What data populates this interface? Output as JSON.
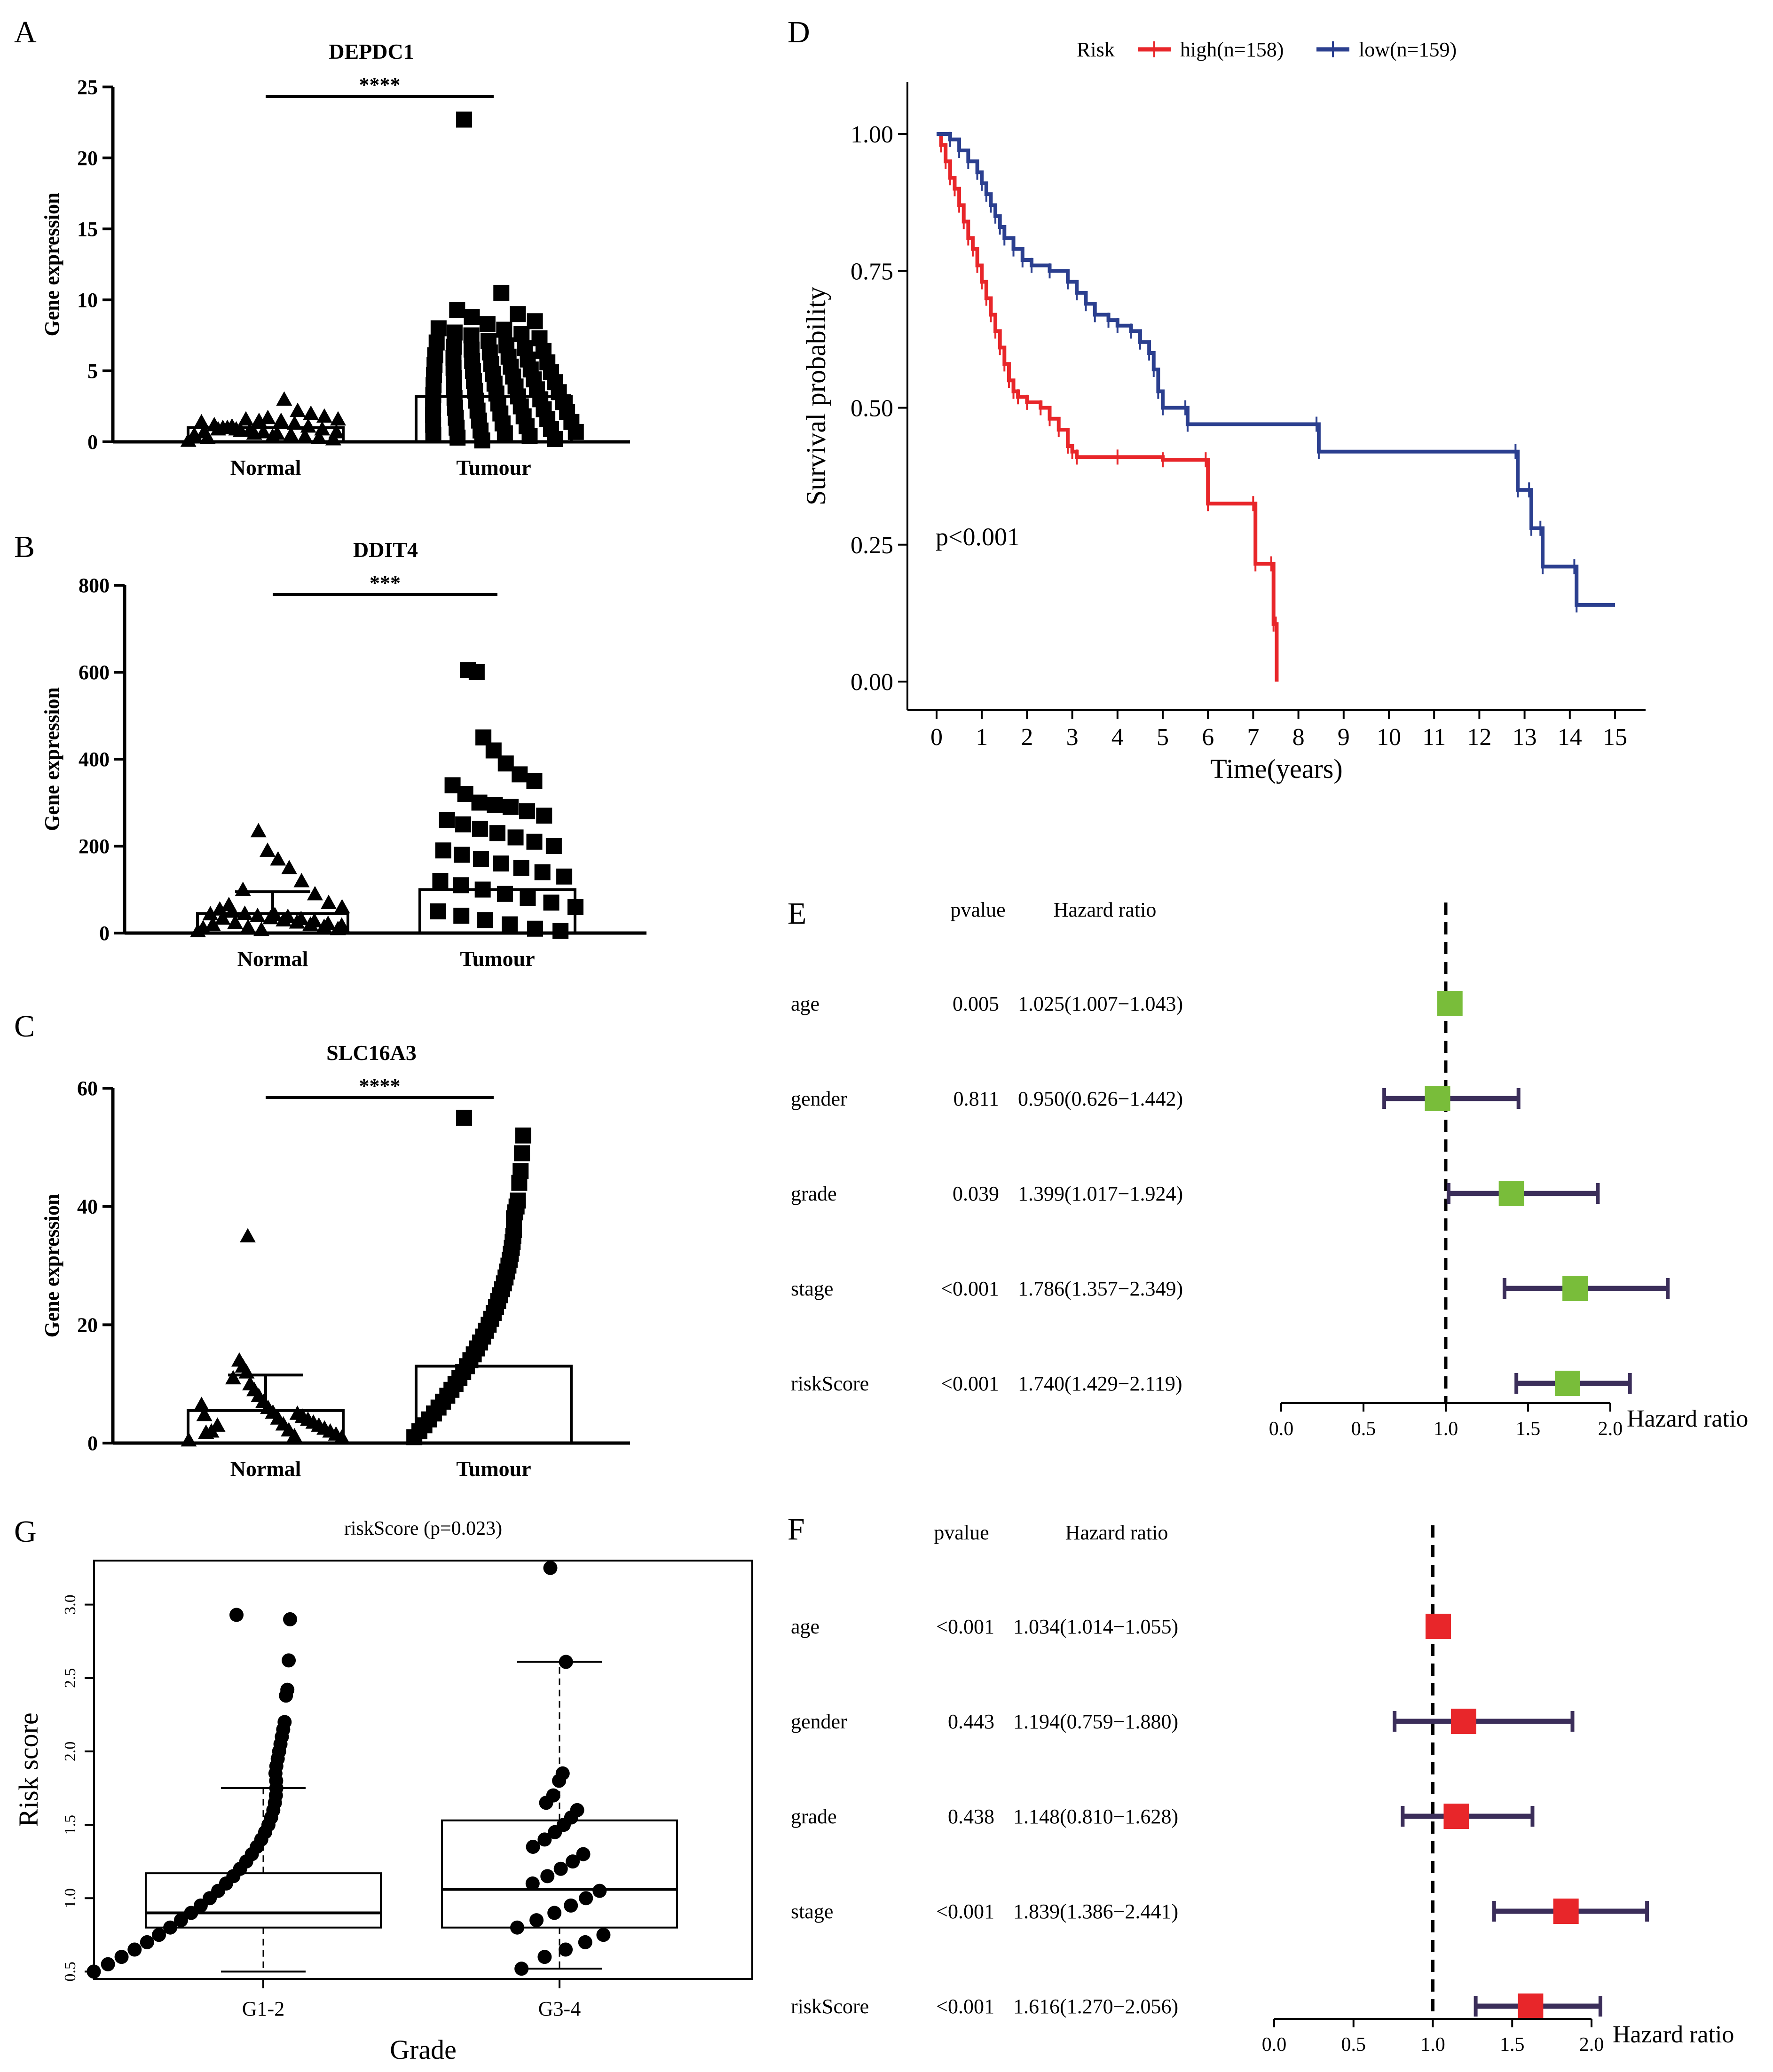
{
  "colors": {
    "high": "#e8262a",
    "low": "#2b3f8f",
    "forest_ci": "#3b2e5a",
    "forest_green": "#79bd3a",
    "forest_red": "#e8262a",
    "black": "#000000"
  },
  "chart_data": [
    {
      "panel": "A",
      "type": "scatter",
      "title": "DEPDC1",
      "ylabel": "Gene expression",
      "categories": [
        "Normal",
        "Tumour"
      ],
      "ylim": [
        0,
        25
      ],
      "yticks": [
        "0",
        "5",
        "10",
        "15",
        "20",
        "25"
      ],
      "significance": "****",
      "means": [
        1.0,
        3.2
      ],
      "sd_upper": [
        1.0,
        3.2
      ],
      "series": [
        {
          "name": "Normal",
          "marker": "triangle",
          "values": [
            0.1,
            0.2,
            0.3,
            0.4,
            0.5,
            0.6,
            0.7,
            0.8,
            0.9,
            1.0,
            0.3,
            0.5,
            0.7,
            0.9,
            1.1,
            1.3,
            1.5,
            1.7,
            0.6,
            0.8,
            1.0,
            1.2,
            1.4,
            1.6,
            1.8,
            2.0,
            2.2,
            3.0,
            0.4,
            1.5,
            1.6,
            1.1,
            0.9,
            0.7
          ]
        },
        {
          "name": "Tumour",
          "marker": "square",
          "values": [
            22.7,
            10.5,
            9.3,
            9.0,
            8.8,
            8.5,
            8.3,
            8.0,
            7.9,
            7.7,
            7.6,
            7.5,
            7.3,
            7.1,
            7.0,
            6.8,
            6.7,
            6.6,
            6.5,
            6.4,
            6.3,
            6.1,
            6.0,
            5.9,
            5.8,
            5.7,
            5.6,
            5.5,
            5.4,
            5.3,
            5.2,
            5.1,
            5.0,
            4.9,
            4.8,
            4.7,
            4.6,
            4.5,
            4.4,
            4.3,
            4.2,
            4.1,
            4.0,
            3.9,
            3.8,
            3.7,
            3.6,
            3.5,
            3.4,
            3.3,
            3.2,
            3.1,
            3.0,
            2.9,
            2.8,
            2.7,
            2.6,
            2.5,
            2.4,
            2.3,
            2.2,
            2.1,
            2.0,
            1.9,
            1.8,
            1.7,
            1.6,
            1.5,
            1.4,
            1.3,
            1.2,
            1.1,
            1.0,
            0.9,
            0.8,
            0.7,
            0.6,
            0.5,
            0.4,
            0.3,
            0.2,
            0.1
          ]
        }
      ]
    },
    {
      "panel": "B",
      "type": "scatter",
      "title": "DDIT4",
      "ylabel": "Gene expression",
      "categories": [
        "Normal",
        "Tumour"
      ],
      "ylim": [
        0,
        800
      ],
      "yticks": [
        "0",
        "200",
        "400",
        "600",
        "800"
      ],
      "significance": "***",
      "means": [
        45,
        100
      ],
      "sd_upper": [
        95,
        100
      ],
      "series": [
        {
          "name": "Normal",
          "marker": "triangle",
          "values": [
            5,
            10,
            15,
            20,
            25,
            30,
            35,
            40,
            45,
            50,
            55,
            12,
            18,
            22,
            28,
            33,
            38,
            42,
            8,
            14,
            24,
            34,
            44,
            60,
            70,
            90,
            120,
            150,
            170,
            190,
            235,
            100,
            65,
            20
          ]
        },
        {
          "name": "Tumour",
          "marker": "square",
          "values": [
            605,
            600,
            450,
            420,
            390,
            365,
            350,
            340,
            320,
            300,
            295,
            290,
            280,
            270,
            260,
            250,
            240,
            230,
            220,
            210,
            200,
            190,
            180,
            170,
            160,
            150,
            140,
            130,
            120,
            110,
            100,
            90,
            80,
            70,
            60,
            50,
            40,
            30,
            20,
            10,
            5
          ]
        }
      ]
    },
    {
      "panel": "C",
      "type": "scatter",
      "title": "SLC16A3",
      "ylabel": "Gene expression",
      "categories": [
        "Normal",
        "Tumour"
      ],
      "ylim": [
        0,
        60
      ],
      "yticks": [
        "0",
        "20",
        "40",
        "60"
      ],
      "significance": "****",
      "means": [
        5.5,
        13
      ],
      "sd_upper": [
        11.5,
        13
      ],
      "series": [
        {
          "name": "Normal",
          "marker": "triangle",
          "values": [
            0.5,
            1,
            1.5,
            2,
            2.5,
            3,
            3.5,
            4,
            4.5,
            5,
            1.2,
            2.2,
            3.2,
            4.2,
            5.2,
            6,
            7,
            8,
            9,
            10,
            12,
            13,
            14,
            11,
            35,
            3,
            2,
            1.8,
            4.8,
            6.5
          ]
        },
        {
          "name": "Tumour",
          "marker": "square",
          "values": [
            55,
            52,
            49,
            46,
            44,
            41,
            40,
            39,
            38,
            36,
            35,
            34,
            33,
            32,
            31,
            30,
            29,
            28,
            27,
            26,
            25,
            24,
            23,
            22,
            21,
            20,
            19,
            18,
            17,
            16,
            15,
            14,
            13,
            12,
            11,
            10,
            9,
            8,
            7,
            6,
            5,
            4,
            3,
            2,
            1
          ]
        }
      ]
    },
    {
      "panel": "D",
      "type": "line",
      "title": "",
      "xlabel": "Time(years)",
      "ylabel": "Survival probability",
      "xlim": [
        0,
        15
      ],
      "ylim": [
        0,
        1
      ],
      "xticks": [
        "0",
        "1",
        "2",
        "3",
        "4",
        "5",
        "6",
        "7",
        "8",
        "9",
        "10",
        "11",
        "12",
        "13",
        "14",
        "15"
      ],
      "yticks": [
        "0.00",
        "0.25",
        "0.50",
        "0.75",
        "1.00"
      ],
      "legend_title": "Risk",
      "legend_position": "top",
      "annotation": "p<0.001",
      "series": [
        {
          "name": "high(n=158)",
          "points": [
            [
              0,
              1.0
            ],
            [
              0.1,
              0.98
            ],
            [
              0.2,
              0.95
            ],
            [
              0.3,
              0.92
            ],
            [
              0.4,
              0.9
            ],
            [
              0.5,
              0.87
            ],
            [
              0.6,
              0.84
            ],
            [
              0.7,
              0.81
            ],
            [
              0.8,
              0.79
            ],
            [
              0.9,
              0.76
            ],
            [
              1.0,
              0.73
            ],
            [
              1.1,
              0.7
            ],
            [
              1.2,
              0.67
            ],
            [
              1.3,
              0.64
            ],
            [
              1.4,
              0.61
            ],
            [
              1.5,
              0.58
            ],
            [
              1.6,
              0.55
            ],
            [
              1.7,
              0.53
            ],
            [
              1.8,
              0.52
            ],
            [
              2.0,
              0.51
            ],
            [
              2.3,
              0.5
            ],
            [
              2.5,
              0.48
            ],
            [
              2.7,
              0.46
            ],
            [
              2.9,
              0.43
            ],
            [
              3.0,
              0.42
            ],
            [
              3.1,
              0.41
            ],
            [
              4.0,
              0.41
            ],
            [
              5.0,
              0.405
            ],
            [
              5.95,
              0.405
            ],
            [
              6.0,
              0.325
            ],
            [
              7.0,
              0.325
            ],
            [
              7.05,
              0.215
            ],
            [
              7.4,
              0.215
            ],
            [
              7.45,
              0.105
            ],
            [
              7.5,
              0.105
            ],
            [
              7.52,
              0.0
            ]
          ]
        },
        {
          "name": "low(n=159)",
          "points": [
            [
              0,
              1.0
            ],
            [
              0.3,
              0.99
            ],
            [
              0.5,
              0.97
            ],
            [
              0.7,
              0.95
            ],
            [
              0.9,
              0.93
            ],
            [
              1.0,
              0.91
            ],
            [
              1.1,
              0.89
            ],
            [
              1.2,
              0.87
            ],
            [
              1.3,
              0.85
            ],
            [
              1.4,
              0.83
            ],
            [
              1.5,
              0.81
            ],
            [
              1.7,
              0.79
            ],
            [
              1.9,
              0.77
            ],
            [
              2.1,
              0.76
            ],
            [
              2.5,
              0.75
            ],
            [
              2.9,
              0.73
            ],
            [
              3.1,
              0.71
            ],
            [
              3.3,
              0.69
            ],
            [
              3.5,
              0.67
            ],
            [
              3.8,
              0.66
            ],
            [
              4.0,
              0.65
            ],
            [
              4.3,
              0.64
            ],
            [
              4.5,
              0.62
            ],
            [
              4.7,
              0.6
            ],
            [
              4.8,
              0.57
            ],
            [
              4.9,
              0.53
            ],
            [
              5.0,
              0.5
            ],
            [
              5.5,
              0.5
            ],
            [
              5.55,
              0.47
            ],
            [
              8.4,
              0.47
            ],
            [
              8.45,
              0.42
            ],
            [
              12.8,
              0.42
            ],
            [
              12.85,
              0.35
            ],
            [
              13.1,
              0.35
            ],
            [
              13.15,
              0.28
            ],
            [
              13.35,
              0.28
            ],
            [
              13.4,
              0.21
            ],
            [
              14.1,
              0.21
            ],
            [
              14.15,
              0.14
            ],
            [
              15.0,
              0.14
            ]
          ]
        }
      ]
    },
    {
      "panel": "E",
      "type": "forest",
      "header_pvalue": "pvalue",
      "header_hr": "Hazard ratio",
      "xlabel": "Hazard ratio",
      "xlim": [
        0,
        2
      ],
      "xticks": [
        "0.0",
        "0.5",
        "1.0",
        "1.5",
        "2.0"
      ],
      "rows": [
        {
          "label": "age",
          "pvalue": "0.005",
          "hr_text": "1.025(1.007−1.043)",
          "hr": 1.025,
          "lo": 1.007,
          "hi": 1.043
        },
        {
          "label": "gender",
          "pvalue": "0.811",
          "hr_text": "0.950(0.626−1.442)",
          "hr": 0.95,
          "lo": 0.626,
          "hi": 1.442
        },
        {
          "label": "grade",
          "pvalue": "0.039",
          "hr_text": "1.399(1.017−1.924)",
          "hr": 1.399,
          "lo": 1.017,
          "hi": 1.924
        },
        {
          "label": "stage",
          "pvalue": "<0.001",
          "hr_text": "1.786(1.357−2.349)",
          "hr": 1.786,
          "lo": 1.357,
          "hi": 2.349
        },
        {
          "label": "riskScore",
          "pvalue": "<0.001",
          "hr_text": "1.740(1.429−2.119)",
          "hr": 1.74,
          "lo": 1.429,
          "hi": 2.119
        }
      ]
    },
    {
      "panel": "F",
      "type": "forest",
      "header_pvalue": "pvalue",
      "header_hr": "Hazard ratio",
      "xlabel": "Hazard ratio",
      "xlim": [
        0,
        2
      ],
      "xticks": [
        "0.0",
        "0.5",
        "1.0",
        "1.5",
        "2.0"
      ],
      "rows": [
        {
          "label": "age",
          "pvalue": "<0.001",
          "hr_text": "1.034(1.014−1.055)",
          "hr": 1.034,
          "lo": 1.014,
          "hi": 1.055
        },
        {
          "label": "gender",
          "pvalue": "0.443",
          "hr_text": "1.194(0.759−1.880)",
          "hr": 1.194,
          "lo": 0.759,
          "hi": 1.88
        },
        {
          "label": "grade",
          "pvalue": "0.438",
          "hr_text": "1.148(0.810−1.628)",
          "hr": 1.148,
          "lo": 0.81,
          "hi": 1.628
        },
        {
          "label": "stage",
          "pvalue": "<0.001",
          "hr_text": "1.839(1.386−2.441)",
          "hr": 1.839,
          "lo": 1.386,
          "hi": 2.441
        },
        {
          "label": "riskScore",
          "pvalue": "<0.001",
          "hr_text": "1.616(1.270−2.056)",
          "hr": 1.616,
          "lo": 1.27,
          "hi": 2.056
        }
      ]
    },
    {
      "panel": "G",
      "type": "scatter",
      "title": "riskScore (p=0.023)",
      "xlabel": "Grade",
      "ylabel": "Risk score",
      "categories": [
        "G1-2",
        "G3-4"
      ],
      "ylim": [
        0.45,
        3.3
      ],
      "yticks": [
        "0.5",
        "1.0",
        "1.5",
        "2.0",
        "2.5",
        "3.0"
      ],
      "boxes": [
        {
          "name": "G1-2",
          "min": 0.5,
          "q1": 0.8,
          "median": 0.9,
          "q3": 1.17,
          "max": 1.75
        },
        {
          "name": "G3-4",
          "min": 0.52,
          "q1": 0.8,
          "median": 1.06,
          "q3": 1.53,
          "max": 2.61
        }
      ],
      "series": [
        {
          "name": "G1-2",
          "values": [
            2.93,
            2.9,
            2.62,
            2.42,
            2.38,
            2.2,
            2.15,
            2.1,
            2.05,
            2.0,
            1.95,
            1.9,
            1.85,
            1.8,
            1.75,
            1.7,
            1.65,
            1.6,
            1.55,
            1.5,
            1.45,
            1.4,
            1.35,
            1.3,
            1.25,
            1.2,
            1.15,
            1.1,
            1.05,
            1.0,
            0.95,
            0.9,
            0.85,
            0.8,
            0.75,
            0.7,
            0.65,
            0.6,
            0.55,
            0.5
          ]
        },
        {
          "name": "G3-4",
          "values": [
            3.25,
            2.61,
            1.85,
            1.8,
            1.7,
            1.65,
            1.6,
            1.55,
            1.5,
            1.45,
            1.4,
            1.35,
            1.3,
            1.25,
            1.2,
            1.15,
            1.1,
            1.05,
            1.0,
            0.95,
            0.9,
            0.85,
            0.8,
            0.75,
            0.7,
            0.65,
            0.6,
            0.52
          ]
        }
      ]
    }
  ],
  "panel_letters": [
    "A",
    "B",
    "C",
    "D",
    "E",
    "F",
    "G"
  ]
}
